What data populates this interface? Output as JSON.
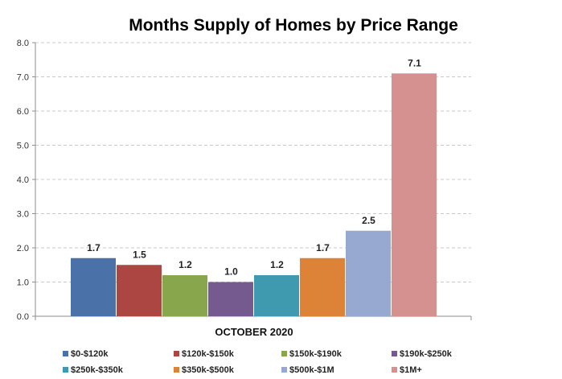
{
  "chart_data": {
    "type": "bar",
    "title": "Months Supply of Homes by Price Range",
    "xlabel": "OCTOBER 2020",
    "ylabel": "",
    "ylim": [
      0,
      8
    ],
    "yticks": [
      "0.0",
      "1.0",
      "2.0",
      "3.0",
      "4.0",
      "5.0",
      "6.0",
      "7.0",
      "8.0"
    ],
    "grid": true,
    "legend_position": "bottom",
    "series": [
      {
        "name": "$0-$120k",
        "value": 1.7,
        "label": "1.7",
        "color": "#4a72a8"
      },
      {
        "name": "$120k-$150k",
        "value": 1.5,
        "label": "1.5",
        "color": "#ac4643"
      },
      {
        "name": "$150k-$190k",
        "value": 1.2,
        "label": "1.2",
        "color": "#88a64c"
      },
      {
        "name": "$190k-$250k",
        "value": 1.0,
        "label": "1.0",
        "color": "#745a8f"
      },
      {
        "name": "$250k-$350k",
        "value": 1.2,
        "label": "1.2",
        "color": "#3f9aaf"
      },
      {
        "name": "$350k-$500k",
        "value": 1.7,
        "label": "1.7",
        "color": "#dd8338"
      },
      {
        "name": "$500k-$1M",
        "value": 2.5,
        "label": "2.5",
        "color": "#97a9d1"
      },
      {
        "name": "$1M+",
        "value": 7.1,
        "label": "7.1",
        "color": "#d49190"
      }
    ]
  }
}
